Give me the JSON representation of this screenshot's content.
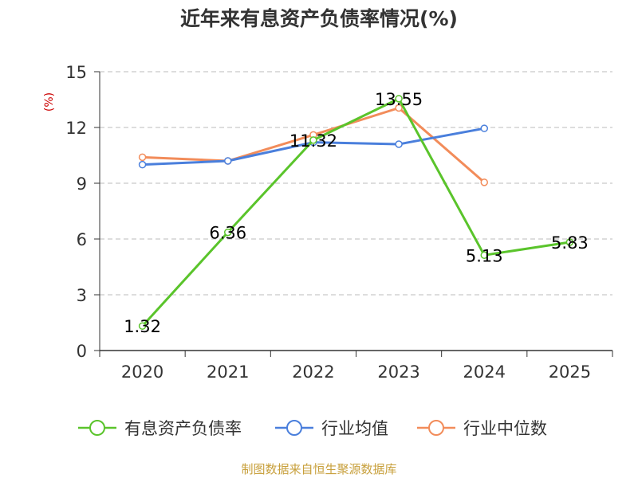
{
  "chart_data": {
    "type": "line",
    "title": "近年来有息资产负债率情况(%)",
    "ylabel": "(%)",
    "xlabel": "",
    "categories": [
      "2020",
      "2021",
      "2022",
      "2023",
      "2024",
      "2025"
    ],
    "ylim": [
      0,
      15
    ],
    "yticks": [
      "0",
      "3",
      "6",
      "9",
      "12",
      "15"
    ],
    "grid": true,
    "legend_position": "bottom",
    "series": [
      {
        "name": "有息资产负债率",
        "color": "#5ac42b",
        "values": [
          1.32,
          6.36,
          11.32,
          13.55,
          5.13,
          5.83
        ],
        "labels": [
          "1.32",
          "6.36",
          "11.32",
          "13.55",
          "5.13",
          "5.83"
        ]
      },
      {
        "name": "行业均值",
        "color": "#4a7fdc",
        "values": [
          10.0,
          10.2,
          11.2,
          11.1,
          11.95,
          null
        ]
      },
      {
        "name": "行业中位数",
        "color": "#f28c5a",
        "values": [
          10.4,
          10.2,
          11.6,
          13.05,
          9.05,
          null
        ]
      }
    ]
  },
  "footer": {
    "source": "制图数据来自恒生聚源数据库"
  }
}
